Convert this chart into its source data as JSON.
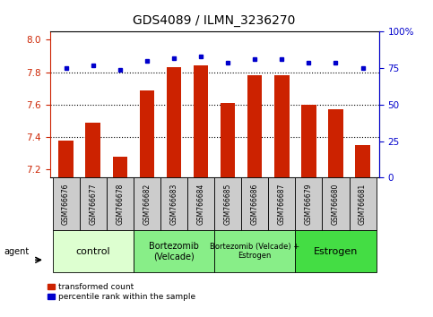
{
  "title": "GDS4089 / ILMN_3236270",
  "samples": [
    "GSM766676",
    "GSM766677",
    "GSM766678",
    "GSM766682",
    "GSM766683",
    "GSM766684",
    "GSM766685",
    "GSM766686",
    "GSM766687",
    "GSM766679",
    "GSM766680",
    "GSM766681"
  ],
  "red_values": [
    7.38,
    7.49,
    7.28,
    7.69,
    7.83,
    7.84,
    7.61,
    7.78,
    7.78,
    7.6,
    7.57,
    7.35
  ],
  "blue_values": [
    75,
    77,
    74,
    80,
    82,
    83,
    79,
    81,
    81,
    79,
    79,
    75
  ],
  "ylim_left": [
    7.15,
    8.05
  ],
  "ylim_right": [
    0,
    100
  ],
  "yticks_left": [
    7.2,
    7.4,
    7.6,
    7.8,
    8.0
  ],
  "yticks_right": [
    0,
    25,
    50,
    75,
    100
  ],
  "bar_color": "#cc2200",
  "dot_color": "#0000cc",
  "bar_bottom": 7.15,
  "agent_label": "agent",
  "legend_red": "transformed count",
  "legend_blue": "percentile rank within the sample",
  "group_defs": [
    {
      "label": "control",
      "cols": [
        0,
        1,
        2
      ],
      "color": "#ddffd0",
      "fontsize": 8
    },
    {
      "label": "Bortezomib\n(Velcade)",
      "cols": [
        3,
        4,
        5
      ],
      "color": "#88ee88",
      "fontsize": 7
    },
    {
      "label": "Bortezomib (Velcade) +\nEstrogen",
      "cols": [
        6,
        7,
        8
      ],
      "color": "#88ee88",
      "fontsize": 6
    },
    {
      "label": "Estrogen",
      "cols": [
        9,
        10,
        11
      ],
      "color": "#44dd44",
      "fontsize": 8
    }
  ],
  "sample_box_color": "#cccccc",
  "dotted_yvals": [
    7.4,
    7.6,
    7.8
  ]
}
